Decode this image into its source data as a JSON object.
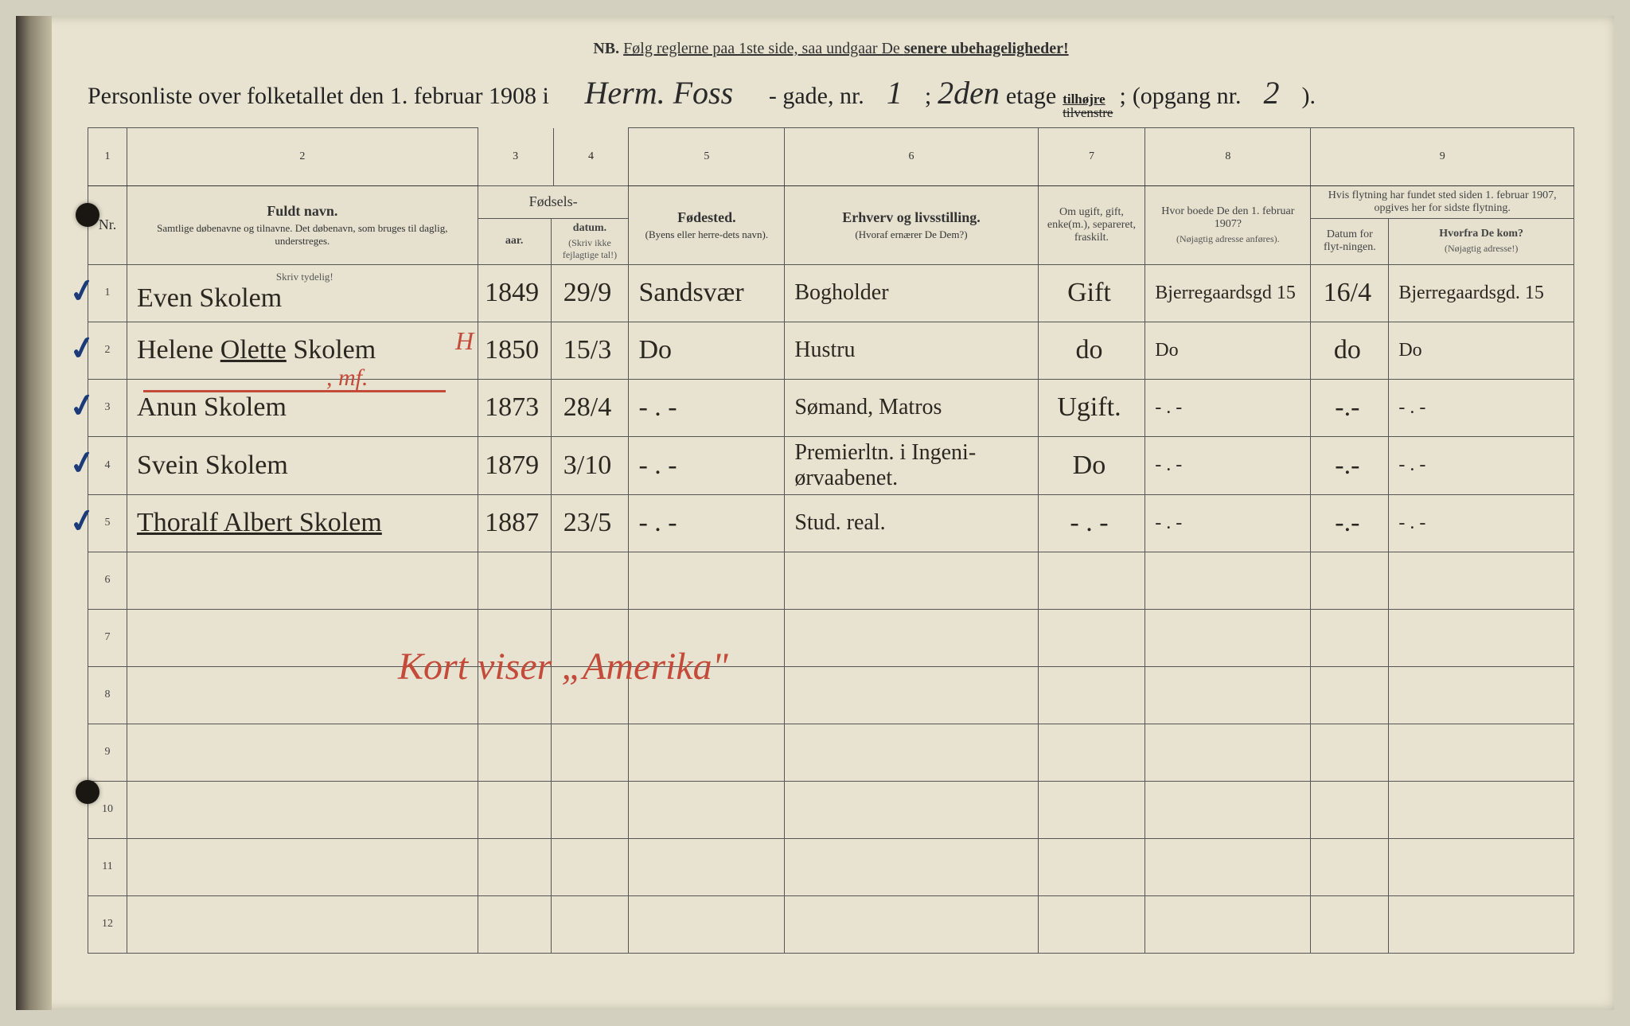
{
  "nb": {
    "label": "NB.",
    "text_a": "Følg reglerne paa 1ste side, saa undgaar De ",
    "text_b": "senere ubehageligheder!"
  },
  "title": {
    "t1": "Personliste over folketallet den 1. februar 1908 i",
    "street_hand": "Herm. Foss",
    "t2": "- gade, nr.",
    "nr_hand": "1",
    "semi1": ";",
    "floor_hand": "2den",
    "t3": "etage",
    "side_top": "tilhøjre",
    "side_bot": "tilvenstre",
    "semi2": ";",
    "t4": "(opgang nr.",
    "opg_hand": "2",
    "t5": ")."
  },
  "colnums": [
    "1",
    "2",
    "3",
    "4",
    "5",
    "6",
    "7",
    "8",
    "9"
  ],
  "headers": {
    "nr": "Nr.",
    "name_main": "Fuldt navn.",
    "name_sub": "Samtlige døbenavne og tilnavne. Det døbenavn, som bruges til daglig, understreges.",
    "name_hint": "Skriv tydelig!",
    "birth_group": "Fødsels-",
    "birth_year": "aar.",
    "birth_date": "datum.",
    "birth_hint": "(Skriv ikke fejlagtige tal!)",
    "place_main": "Fødested.",
    "place_sub": "(Byens eller herre-dets navn).",
    "occ_main": "Erhverv og livsstilling.",
    "occ_sub": "(Hvoraf ernærer De Dem?)",
    "marital": "Om ugift, gift, enke(m.), separeret, fraskilt.",
    "prev_main": "Hvor boede De den 1. februar 1907?",
    "prev_sub": "(Nøjagtig adresse anføres).",
    "move_group": "Hvis flytning har fundet sted siden 1. februar 1907, opgives her for sidste flytning.",
    "move_date": "Datum for flyt-ningen.",
    "move_from_a": "Hvorfra De kom?",
    "move_from_b": "(Nøjagtig adresse!)"
  },
  "rows": [
    {
      "n": "1",
      "check": "✓",
      "name": "Even Skolem",
      "year": "1849",
      "date": "29/9",
      "place": "Sandsvær",
      "occ": "Bogholder",
      "mar": "Gift",
      "prev": "Bjerregaardsgd 15",
      "mdate": "16/4",
      "mfrom": "Bjerregaardsgd. 15"
    },
    {
      "n": "2",
      "check": "✓",
      "name_a": "Helene ",
      "name_u": "Olette",
      "name_b": " Skolem",
      "year": "1850",
      "date": "15/3",
      "place": "Do",
      "occ": "Hustru",
      "mar": "do",
      "prev": "Do",
      "mdate": "do",
      "mfrom": "Do"
    },
    {
      "n": "3",
      "check": "✓",
      "name": "Anun     Skolem",
      "year": "1873",
      "date": "28/4",
      "place": "- . -",
      "occ": "Sømand, Matros",
      "mar": "Ugift.",
      "prev": "- . -",
      "mdate": "-.-",
      "mfrom": "- . -"
    },
    {
      "n": "4",
      "check": "✓",
      "name": "Svein    Skolem",
      "year": "1879",
      "date": "3/10",
      "place": "- . -",
      "occ": "Premierltn. i Ingeni-ørvaabenet.",
      "mar": "Do",
      "prev": "- . -",
      "mdate": "-.-",
      "mfrom": "- . -"
    },
    {
      "n": "5",
      "check": "✓",
      "name": "Thoralf Albert Skolem",
      "year": "1887",
      "date": "23/5",
      "place": "- . -",
      "occ": "Stud. real.",
      "mar": "- . -",
      "prev": "- . -",
      "mdate": "-.-",
      "mfrom": "- . -"
    }
  ],
  "empty_rows": [
    "6",
    "7",
    "8",
    "9",
    "10",
    "11",
    "12"
  ],
  "red": {
    "note": "Kort viser „Amerika\"",
    "h": "H",
    "mf": ", mf."
  },
  "colors": {
    "paper": "#e8e3d0",
    "ink": "#2a2620",
    "red": "#c44a3a",
    "blue_check": "#1a3a7a",
    "border": "#555"
  }
}
